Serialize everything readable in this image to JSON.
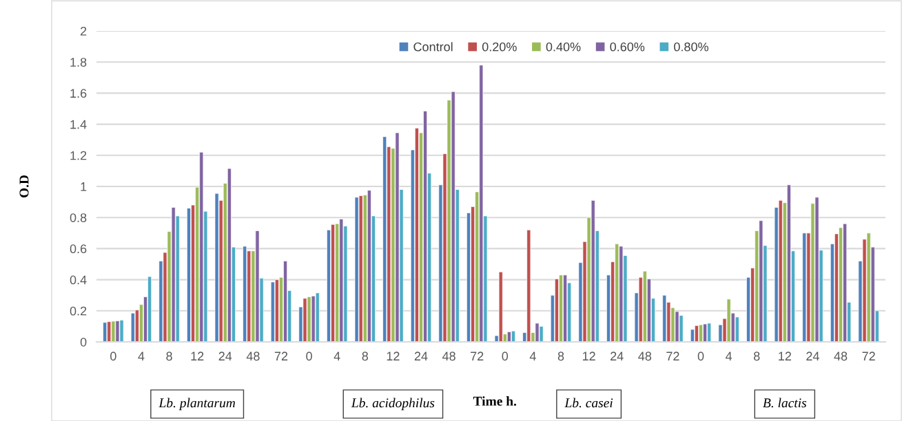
{
  "chart_data": {
    "type": "bar",
    "xlabel": "Time h.",
    "ylabel": "O.D",
    "categories": [
      "0",
      "4",
      "8",
      "12",
      "24",
      "48",
      "72",
      "0",
      "4",
      "8",
      "12",
      "24",
      "48",
      "72",
      "0",
      "4",
      "8",
      "12",
      "24",
      "48",
      "72",
      "0",
      "4",
      "8",
      "12",
      "24",
      "48",
      "72"
    ],
    "series": [
      {
        "name": "Control",
        "color": "#4f81bd",
        "values": [
          0.125,
          0.185,
          0.52,
          0.86,
          0.955,
          0.615,
          0.385,
          0.225,
          0.72,
          0.93,
          1.32,
          1.235,
          1.01,
          0.83,
          0.04,
          0.06,
          0.3,
          0.51,
          0.43,
          0.315,
          0.3,
          0.08,
          0.11,
          0.415,
          0.865,
          0.7,
          0.63,
          0.52
        ]
      },
      {
        "name": "0.20%",
        "color": "#c0504d",
        "values": [
          0.13,
          0.205,
          0.575,
          0.88,
          0.91,
          0.585,
          0.4,
          0.28,
          0.755,
          0.94,
          1.255,
          1.375,
          1.21,
          0.87,
          0.45,
          0.72,
          0.405,
          0.645,
          0.515,
          0.415,
          0.255,
          0.105,
          0.15,
          0.475,
          0.91,
          0.7,
          0.695,
          0.66
        ]
      },
      {
        "name": "0.40%",
        "color": "#9bbb59",
        "values": [
          0.133,
          0.24,
          0.71,
          0.995,
          1.02,
          0.585,
          0.415,
          0.29,
          0.76,
          0.945,
          1.245,
          1.345,
          1.555,
          0.965,
          0.05,
          0.06,
          0.43,
          0.8,
          0.63,
          0.455,
          0.22,
          0.11,
          0.275,
          0.715,
          0.895,
          0.89,
          0.735,
          0.7
        ]
      },
      {
        "name": "0.60%",
        "color": "#8064a2",
        "values": [
          0.135,
          0.29,
          0.865,
          1.22,
          1.115,
          0.715,
          0.52,
          0.295,
          0.79,
          0.975,
          1.345,
          1.485,
          1.61,
          1.78,
          0.065,
          0.12,
          0.43,
          0.91,
          0.615,
          0.405,
          0.195,
          0.115,
          0.185,
          0.78,
          1.01,
          0.93,
          0.76,
          0.61
        ]
      },
      {
        "name": "0.80%",
        "color": "#4bacc6",
        "values": [
          0.14,
          0.42,
          0.81,
          0.84,
          0.61,
          0.41,
          0.33,
          0.315,
          0.745,
          0.81,
          0.98,
          1.085,
          0.98,
          0.81,
          0.07,
          0.1,
          0.38,
          0.715,
          0.555,
          0.28,
          0.17,
          0.12,
          0.16,
          0.62,
          0.585,
          0.59,
          0.255,
          0.2
        ]
      }
    ],
    "ylim": [
      0,
      2
    ],
    "yticks": [
      0,
      0.2,
      0.4,
      0.6,
      0.8,
      1,
      1.2,
      1.4,
      1.6,
      1.8,
      2
    ],
    "grid": "y",
    "legend": "top",
    "annotations": [
      "Lb. plantarum",
      "Lb. acidophilus",
      "Lb. casei",
      "B. lactis"
    ]
  }
}
